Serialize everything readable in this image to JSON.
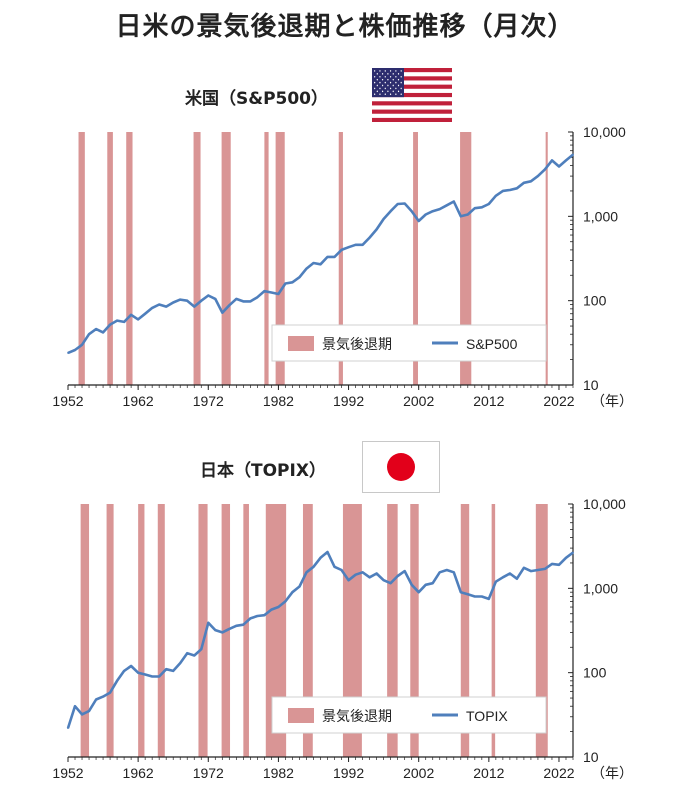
{
  "title": "日米の景気後退期と株価推移（月次）",
  "colors": {
    "recession": "#d99595",
    "line": "#4f7fbc"
  },
  "chart_data": [
    {
      "type": "line",
      "title": "米国（S&P500）",
      "flag": "us-flag",
      "y_scale": "log",
      "ylim": [
        10,
        10000
      ],
      "xlim": [
        1952,
        2024
      ],
      "y_ticks": [
        "10",
        "100",
        "1,000",
        "10,000"
      ],
      "x_ticks": [
        "1952",
        "1962",
        "1972",
        "1982",
        "1992",
        "2002",
        "2012",
        "2022"
      ],
      "x_unit": "（年）",
      "legend": [
        "景気後退期",
        "S&P500"
      ],
      "legend_position": "bottom-right",
      "recessions": [
        [
          1953.5,
          1954.4
        ],
        [
          1957.6,
          1958.4
        ],
        [
          1960.3,
          1961.2
        ],
        [
          1969.9,
          1970.9
        ],
        [
          1973.9,
          1975.2
        ],
        [
          1980.0,
          1980.6
        ],
        [
          1981.6,
          1982.9
        ],
        [
          1990.6,
          1991.2
        ],
        [
          2001.2,
          2001.9
        ],
        [
          2007.9,
          2009.5
        ],
        [
          2020.1,
          2020.4
        ]
      ],
      "series": [
        {
          "name": "S&P500",
          "x": [
            1952,
            1953,
            1954,
            1955,
            1956,
            1957,
            1958,
            1959,
            1960,
            1961,
            1962,
            1963,
            1964,
            1965,
            1966,
            1967,
            1968,
            1969,
            1970,
            1971,
            1972,
            1973,
            1974,
            1975,
            1976,
            1977,
            1978,
            1979,
            1980,
            1981,
            1982,
            1983,
            1984,
            1985,
            1986,
            1987,
            1988,
            1989,
            1990,
            1991,
            1992,
            1993,
            1994,
            1995,
            1996,
            1997,
            1998,
            1999,
            2000,
            2001,
            2002,
            2003,
            2004,
            2005,
            2006,
            2007,
            2008,
            2009,
            2010,
            2011,
            2012,
            2013,
            2014,
            2015,
            2016,
            2017,
            2018,
            2019,
            2020,
            2021,
            2022,
            2023,
            2024
          ],
          "y": [
            24,
            26,
            30,
            40,
            46,
            42,
            52,
            58,
            56,
            68,
            60,
            70,
            82,
            90,
            85,
            95,
            103,
            100,
            85,
            100,
            115,
            105,
            72,
            88,
            105,
            98,
            98,
            110,
            130,
            125,
            120,
            160,
            165,
            190,
            240,
            280,
            270,
            330,
            330,
            400,
            430,
            460,
            460,
            560,
            700,
            930,
            1150,
            1400,
            1420,
            1150,
            880,
            1050,
            1150,
            1220,
            1350,
            1500,
            1000,
            1050,
            1250,
            1280,
            1400,
            1750,
            2000,
            2050,
            2150,
            2500,
            2600,
            3000,
            3600,
            4600,
            3900,
            4600,
            5400
          ]
        }
      ]
    },
    {
      "type": "line",
      "title": "日本（TOPIX）",
      "flag": "jp-flag",
      "y_scale": "log",
      "ylim": [
        10,
        10000
      ],
      "xlim": [
        1952,
        2024
      ],
      "y_ticks": [
        "10",
        "100",
        "1,000",
        "10,000"
      ],
      "x_ticks": [
        "1952",
        "1962",
        "1972",
        "1982",
        "1992",
        "2002",
        "2012",
        "2022"
      ],
      "x_unit": "（年）",
      "legend": [
        "景気後退期",
        "TOPIX"
      ],
      "legend_position": "bottom-right",
      "recessions": [
        [
          1953.8,
          1955.0
        ],
        [
          1957.5,
          1958.5
        ],
        [
          1962.0,
          1962.9
        ],
        [
          1964.8,
          1965.8
        ],
        [
          1970.6,
          1971.9
        ],
        [
          1973.9,
          1975.1
        ],
        [
          1977.0,
          1977.8
        ],
        [
          1980.2,
          1983.1
        ],
        [
          1985.5,
          1986.9
        ],
        [
          1991.2,
          1993.9
        ],
        [
          1997.5,
          1999.0
        ],
        [
          2000.8,
          2002.0
        ],
        [
          2008.0,
          2009.2
        ],
        [
          2012.4,
          2012.9
        ],
        [
          2018.7,
          2020.4
        ]
      ],
      "series": [
        {
          "name": "TOPIX",
          "x": [
            1952,
            1953,
            1954,
            1955,
            1956,
            1957,
            1958,
            1959,
            1960,
            1961,
            1962,
            1963,
            1964,
            1965,
            1966,
            1967,
            1968,
            1969,
            1970,
            1971,
            1972,
            1973,
            1974,
            1975,
            1976,
            1977,
            1978,
            1979,
            1980,
            1981,
            1982,
            1983,
            1984,
            1985,
            1986,
            1987,
            1988,
            1989,
            1990,
            1991,
            1992,
            1993,
            1994,
            1995,
            1996,
            1997,
            1998,
            1999,
            2000,
            2001,
            2002,
            2003,
            2004,
            2005,
            2006,
            2007,
            2008,
            2009,
            2010,
            2011,
            2012,
            2013,
            2014,
            2015,
            2016,
            2017,
            2018,
            2019,
            2020,
            2021,
            2022,
            2023,
            2024
          ],
          "y": [
            22,
            40,
            32,
            35,
            48,
            52,
            58,
            80,
            105,
            120,
            100,
            95,
            90,
            90,
            110,
            105,
            130,
            170,
            160,
            190,
            390,
            320,
            300,
            330,
            360,
            370,
            440,
            470,
            480,
            560,
            600,
            700,
            900,
            1050,
            1550,
            1800,
            2300,
            2700,
            1800,
            1650,
            1250,
            1450,
            1550,
            1350,
            1500,
            1250,
            1150,
            1400,
            1600,
            1100,
            900,
            1100,
            1150,
            1550,
            1650,
            1550,
            900,
            850,
            800,
            800,
            750,
            1200,
            1350,
            1500,
            1300,
            1750,
            1600,
            1650,
            1700,
            1950,
            1900,
            2300,
            2650
          ]
        }
      ]
    }
  ]
}
